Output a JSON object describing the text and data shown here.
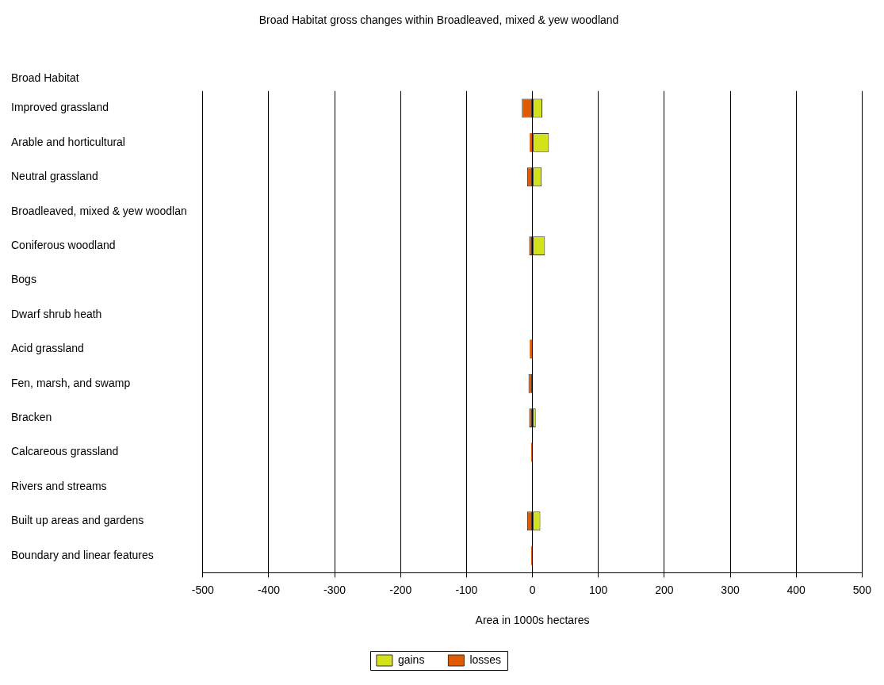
{
  "chart_data": {
    "type": "bar",
    "orientation": "horizontal",
    "stacked": true,
    "title": "Broad Habitat gross changes within Broadleaved, mixed & yew woodland",
    "xlabel": "Area in 1000s hectares",
    "ylabel": "Broad Habitat",
    "categories": [
      "Improved grassland",
      "Arable and horticultural",
      "Neutral grassland",
      "Broadleaved, mixed & yew woodlan",
      "Coniferous woodland",
      "Bogs",
      "Dwarf shrub heath",
      "Acid grassland",
      "Fen, marsh, and swamp",
      "Bracken",
      "Calcareous grassland",
      "Rivers and streams",
      "Built up areas and gardens",
      "Boundary and linear features"
    ],
    "series": [
      {
        "name": "gains",
        "color": "#d4e21c",
        "values": [
          15,
          25,
          14,
          null,
          19,
          null,
          null,
          null,
          null,
          5,
          null,
          null,
          12,
          null
        ]
      },
      {
        "name": "losses",
        "color": "#e05a00",
        "values": [
          -16,
          -4,
          -8,
          null,
          -5,
          null,
          null,
          -4,
          -6,
          -5,
          -2,
          null,
          -8,
          -2
        ]
      }
    ],
    "xlim": [
      -500,
      500
    ],
    "xticks": [
      -500,
      -400,
      -300,
      -200,
      -100,
      0,
      100,
      200,
      300,
      400,
      500
    ],
    "grid": "x",
    "legend": "bottom"
  }
}
